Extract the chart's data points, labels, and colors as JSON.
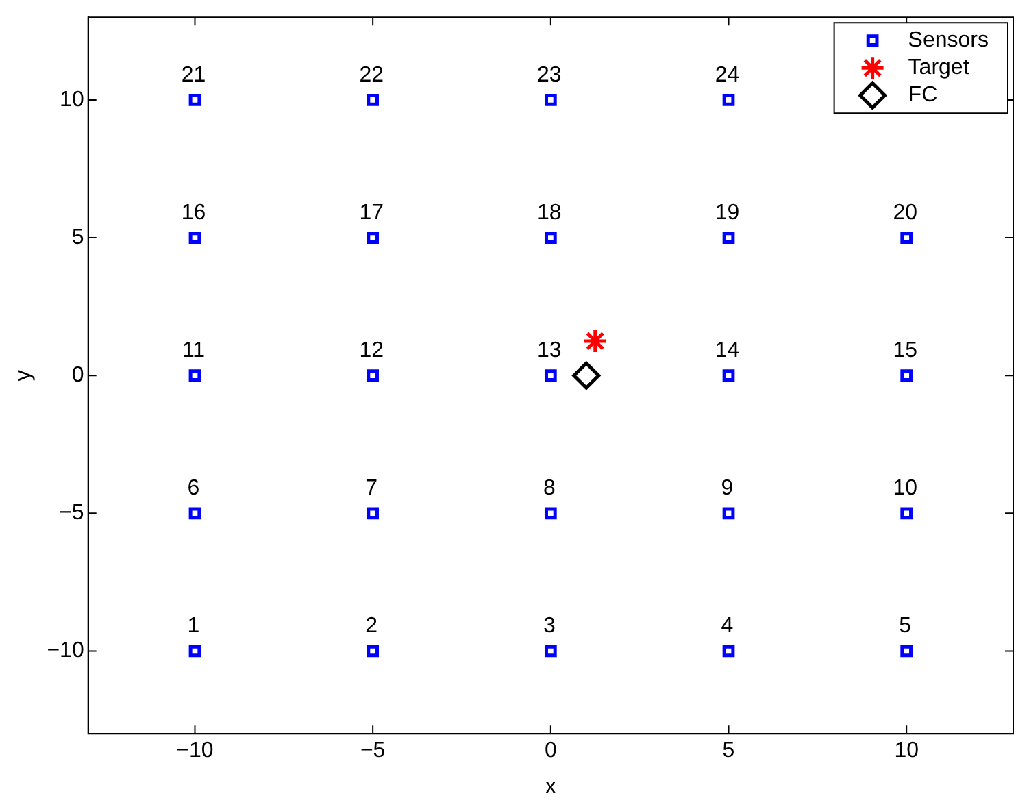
{
  "chart_data": {
    "type": "scatter",
    "xlabel": "x",
    "ylabel": "y",
    "xlim": [
      -13,
      13
    ],
    "ylim": [
      -13,
      13
    ],
    "xticks": [
      -10,
      -5,
      0,
      5,
      10
    ],
    "yticks": [
      -10,
      -5,
      0,
      5,
      10
    ],
    "grid": false,
    "legend": "top right",
    "series": [
      {
        "name": "Sensors",
        "color": "#0000ff",
        "marker": "square",
        "x": [
          -10,
          -5,
          0,
          5,
          10,
          -10,
          -5,
          0,
          5,
          10,
          -10,
          -5,
          0,
          5,
          10,
          -10,
          -5,
          0,
          5,
          10,
          -10,
          -5,
          0,
          5
        ],
        "values": [
          -10,
          -10,
          -10,
          -10,
          -10,
          -5,
          -5,
          -5,
          -5,
          -5,
          0,
          0,
          0,
          0,
          0,
          5,
          5,
          5,
          5,
          5,
          10,
          10,
          10,
          10
        ]
      },
      {
        "name": "Target",
        "color": "#ff0000",
        "marker": "cross",
        "x": [
          1.25
        ],
        "values": [
          1.25
        ]
      },
      {
        "name": "FC",
        "color": "#000000",
        "marker": "diamond",
        "x": [
          1
        ],
        "values": [
          0
        ]
      }
    ],
    "annotations": [
      {
        "text": "1",
        "x": -10,
        "y": -10
      },
      {
        "text": "2",
        "x": -5,
        "y": -10
      },
      {
        "text": "3",
        "x": 0,
        "y": -10
      },
      {
        "text": "4",
        "x": 5,
        "y": -10
      },
      {
        "text": "5",
        "x": 10,
        "y": -10
      },
      {
        "text": "6",
        "x": -10,
        "y": -5
      },
      {
        "text": "7",
        "x": -5,
        "y": -5
      },
      {
        "text": "8",
        "x": 0,
        "y": -5
      },
      {
        "text": "9",
        "x": 5,
        "y": -5
      },
      {
        "text": "10",
        "x": 10,
        "y": -5
      },
      {
        "text": "11",
        "x": -10,
        "y": 0
      },
      {
        "text": "12",
        "x": -5,
        "y": 0
      },
      {
        "text": "13",
        "x": 0,
        "y": 0
      },
      {
        "text": "14",
        "x": 5,
        "y": 0
      },
      {
        "text": "15",
        "x": 10,
        "y": 0
      },
      {
        "text": "16",
        "x": -10,
        "y": 5
      },
      {
        "text": "17",
        "x": -5,
        "y": 5
      },
      {
        "text": "18",
        "x": 0,
        "y": 5
      },
      {
        "text": "19",
        "x": 5,
        "y": 5
      },
      {
        "text": "20",
        "x": 10,
        "y": 5
      },
      {
        "text": "21",
        "x": -10,
        "y": 10
      },
      {
        "text": "22",
        "x": -5,
        "y": 10
      },
      {
        "text": "23",
        "x": 0,
        "y": 10
      },
      {
        "text": "24",
        "x": 5,
        "y": 10
      }
    ]
  }
}
